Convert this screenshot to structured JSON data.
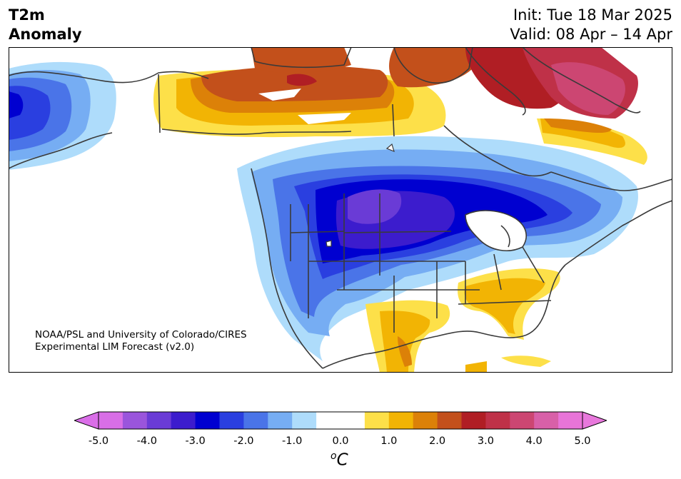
{
  "title": {
    "line1": "T2m",
    "line2": "Anomaly"
  },
  "timing": {
    "init": "Init: Tue 18 Mar 2025",
    "valid": "Valid: 08 Apr – 14 Apr"
  },
  "credit": {
    "line1": "NOAA/PSL and University of Colorado/CIRES",
    "line2": "Experimental LIM Forecast (v2.0)"
  },
  "colorbar": {
    "units_base": "C",
    "units_sup": "o",
    "tick_labels": [
      "-5.0",
      "-4.0",
      "-3.0",
      "-2.0",
      "-1.0",
      "0.0",
      "1.0",
      "2.0",
      "3.0",
      "4.0",
      "5.0"
    ],
    "colors": [
      "#d86ee6",
      "#9a55dc",
      "#6a3bd6",
      "#3c1ccd",
      "#0000d0",
      "#2a3fe0",
      "#4a74e8",
      "#76adf3",
      "#aedcfb",
      "#ffffff",
      "#ffffff",
      "#fde049",
      "#f2b404",
      "#dc8108",
      "#c3501b",
      "#b01e24",
      "#bf3148",
      "#cc4672",
      "#d860a8",
      "#e874d8"
    ],
    "under_color": "#da6ee8",
    "over_color": "#e878dc"
  },
  "map": {
    "region": "North America",
    "colors": {
      "cold_1": "#aedcfb",
      "cold_2": "#76adf3",
      "cold_3": "#4a74e8",
      "cold_4": "#2a3fe0",
      "cold_5": "#0000d0",
      "cold_6": "#3c1ccd",
      "cold_7": "#6a3bd6",
      "warm_1": "#fde049",
      "warm_2": "#f2b404",
      "warm_3": "#dc8108",
      "warm_4": "#c3501b",
      "warm_5": "#b01e24",
      "warm_6": "#bf3148",
      "warm_7": "#cc4672",
      "border": "#3a3a3a"
    }
  }
}
